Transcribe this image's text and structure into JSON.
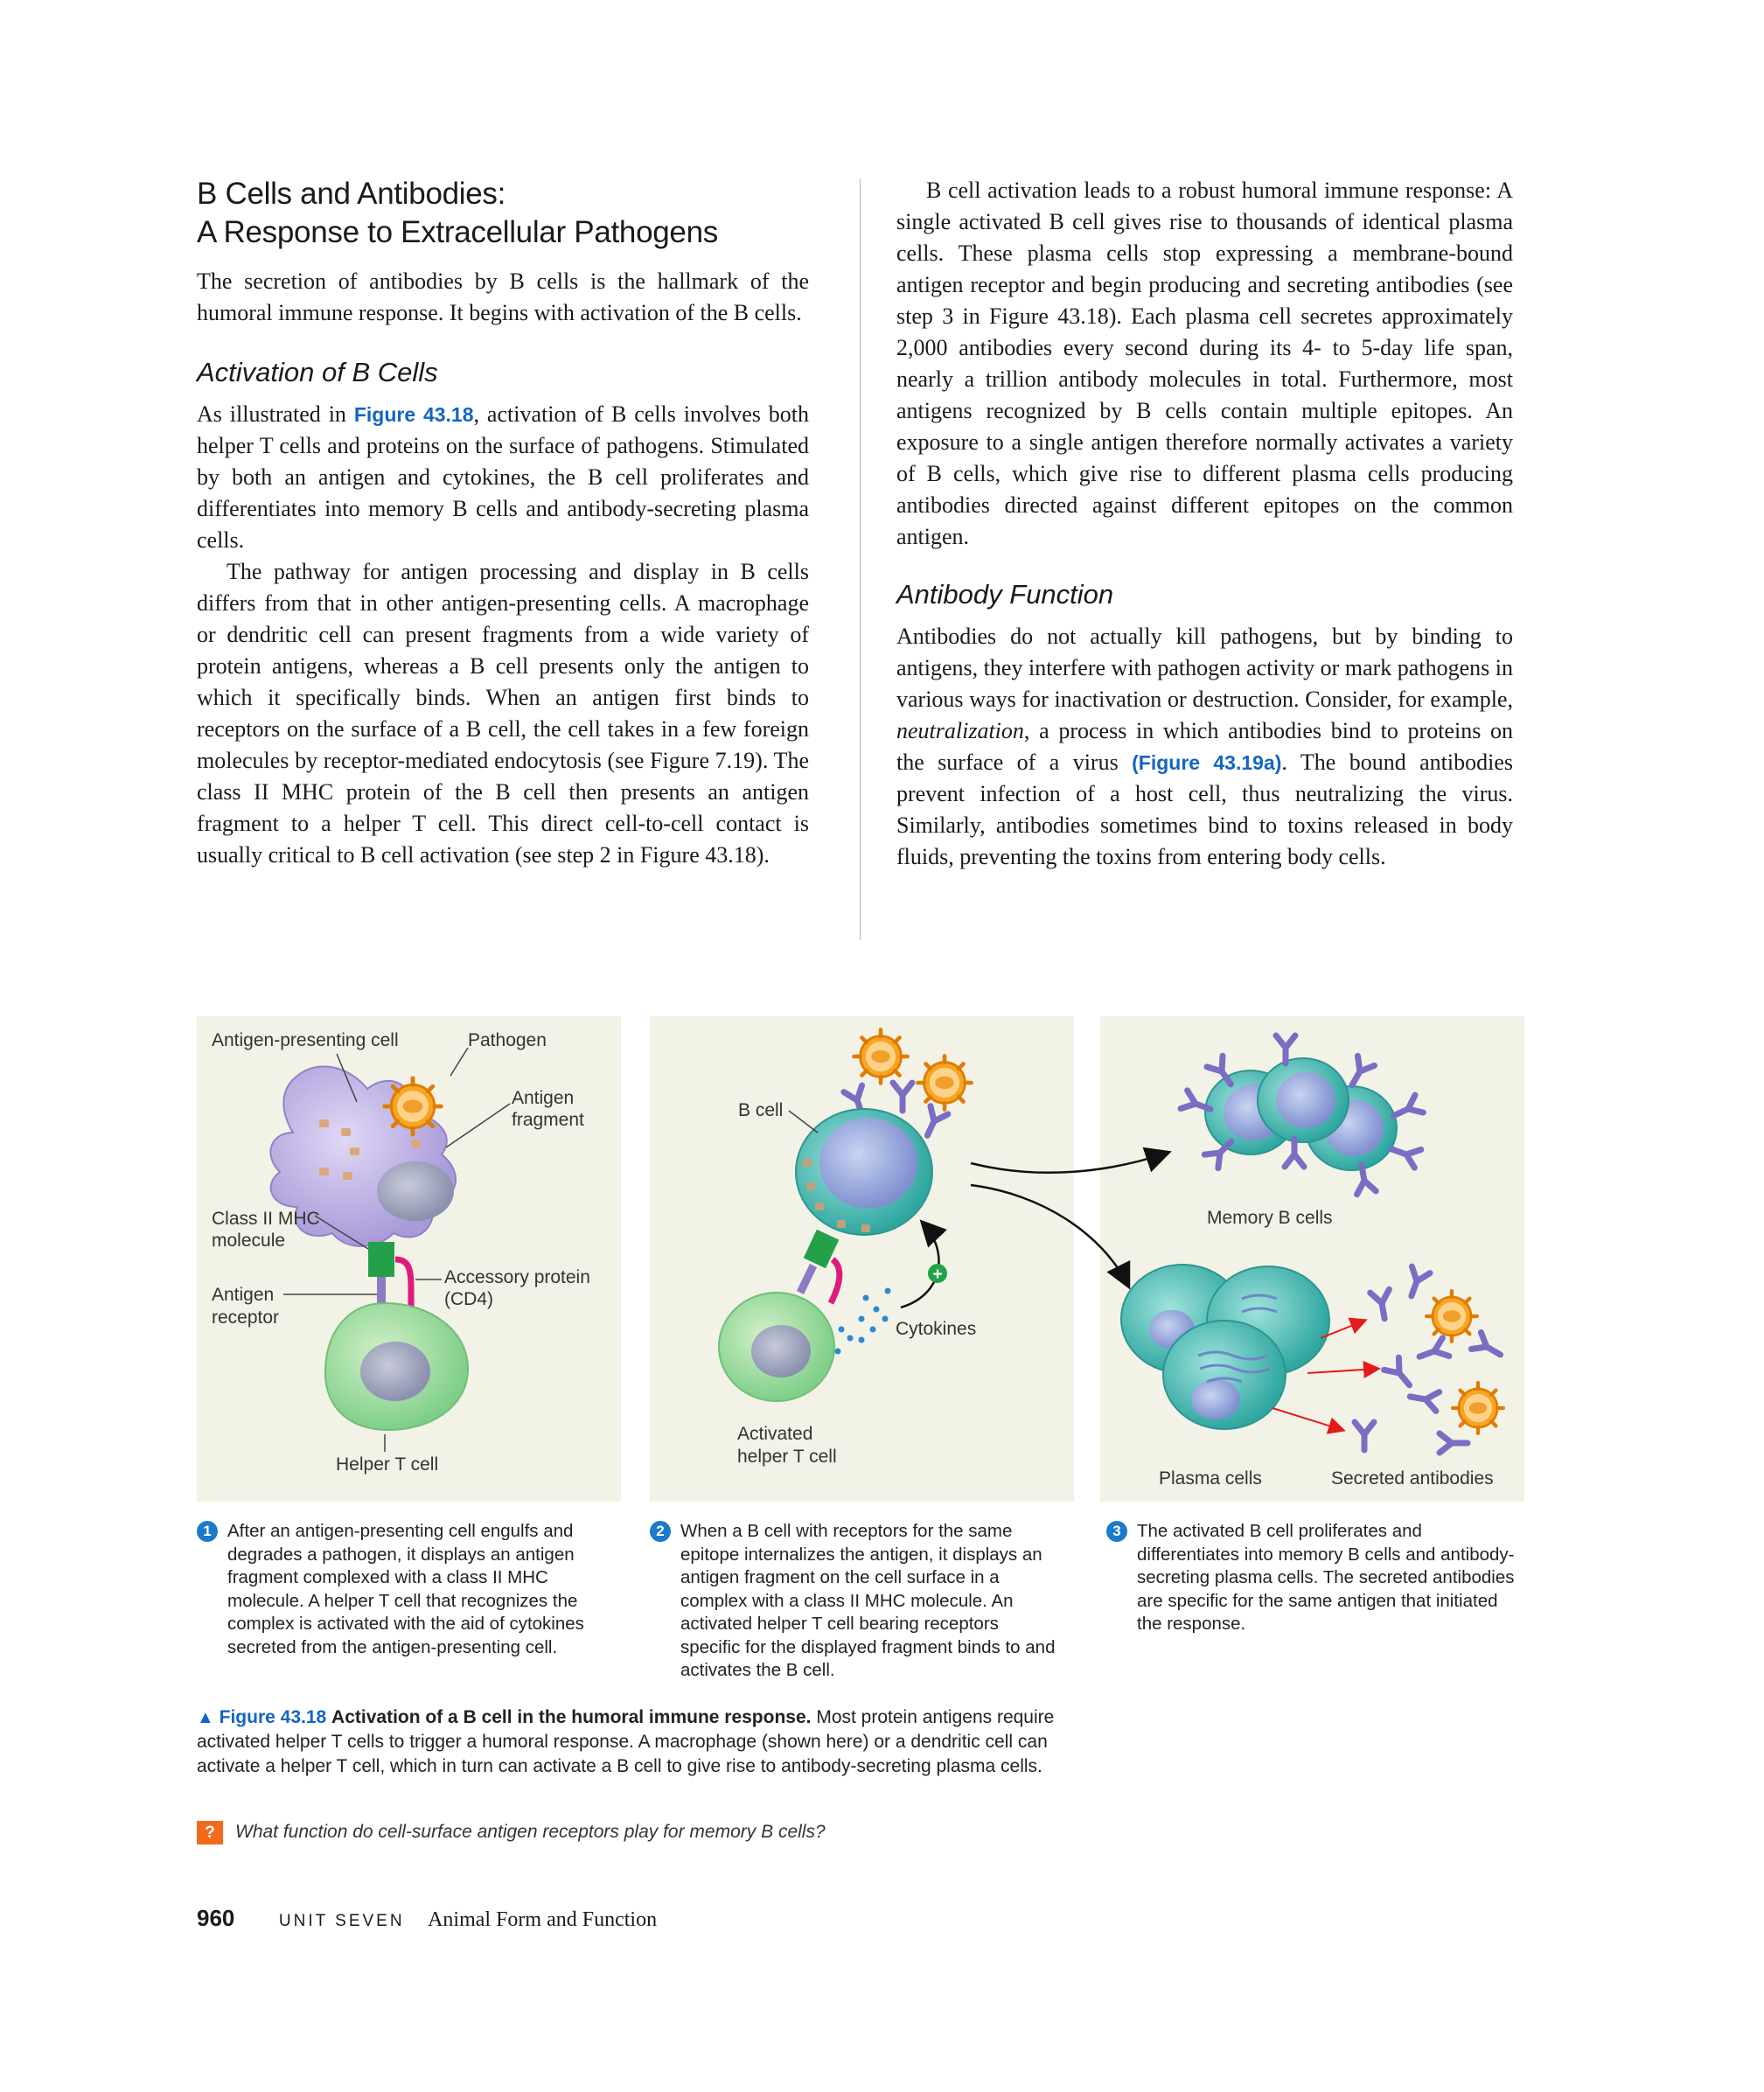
{
  "section": {
    "title_line1": "B Cells and Antibodies:",
    "title_line2": "A Response to Extracellular Pathogens",
    "intro": "The secretion of antibodies by B cells is the hallmark of the humoral immune response. It begins with activation of the B cells."
  },
  "activation": {
    "heading": "Activation of B Cells",
    "p1_before": "As illustrated in ",
    "p1_link": "Figure 43.18",
    "p1_after": ", activation of B cells involves both helper T cells and proteins on the surface of pathogens. Stimulated by both an antigen and cytokines, the B cell proliferates and differentiates into memory B cells and antibody-secreting plasma cells.",
    "p2": "The pathway for antigen processing and display in B cells differs from that in other antigen-presenting cells. A macrophage or dendritic cell can present fragments from a wide variety of protein antigens, whereas a B cell presents only the antigen to which it specifically binds. When an antigen first binds to receptors on the surface of a B cell, the cell takes in a few foreign molecules by receptor-mediated endocytosis (see Figure 7.19). The class II MHC protein of the B cell then presents an antigen fragment to a helper T cell. This direct cell-to-cell contact is usually critical to B cell activation (see step 2 in Figure 43.18)."
  },
  "right": {
    "p1": "B cell activation leads to a robust humoral immune response: A single activated B cell gives rise to thousands of identical plasma cells. These plasma cells stop expressing a membrane-bound antigen receptor and begin producing and secreting antibodies (see step 3 in Figure 43.18). Each plasma cell secretes approximately 2,000 antibodies every second during its 4- to 5-day life span, nearly a trillion antibody molecules in total. Furthermore, most antigens recognized by B cells contain multiple epitopes. An exposure to a single antigen therefore normally activates a variety of B cells, which give rise to different plasma cells producing antibodies directed against different epitopes on the common antigen.",
    "heading": "Antibody Function",
    "p2_a": "Antibodies do not actually kill pathogens, but by binding to antigens, they interfere with pathogen activity or mark pathogens in various ways for inactivation or destruction. Consider, for example, ",
    "p2_term": "neutralization",
    "p2_b": ", a process in which antibodies bind to proteins on the surface of a virus ",
    "p2_link": "(Figure 43.19a)",
    "p2_c": ". The bound antibodies prevent infection of a host cell, thus neutralizing the virus. Similarly, antibodies sometimes bind to toxins released in body fluids, preventing the toxins from entering body cells."
  },
  "figure": {
    "labels": {
      "apc": "Antigen-presenting cell",
      "pathogen": "Pathogen",
      "antigen_fragment_1": "Antigen",
      "antigen_fragment_2": "fragment",
      "mhc_1": "Class II MHC",
      "mhc_2": "molecule",
      "accessory_1": "Accessory protein",
      "accessory_2": "(CD4)",
      "receptor_1": "Antigen",
      "receptor_2": "receptor",
      "helper_t": "Helper T cell",
      "b_cell": "B cell",
      "cytokines": "Cytokines",
      "activated_1": "Activated",
      "activated_2": "helper T cell",
      "memory": "Memory B cells",
      "plasma": "Plasma cells",
      "secreted": "Secreted antibodies",
      "plus": "+"
    },
    "steps": [
      {
        "num": "1",
        "text": "After an antigen-presenting cell engulfs and degrades a pathogen, it displays an antigen fragment complexed with a class II MHC molecule. A helper T cell that recognizes the complex is activated with the aid of cytokines secreted from the antigen-presenting cell."
      },
      {
        "num": "2",
        "text": "When a B cell with receptors for the same epitope internalizes the antigen, it displays an antigen fragment on the cell surface in a complex with a class II MHC molecule. An activated helper T cell bearing receptors specific for the displayed fragment binds to and activates the B cell."
      },
      {
        "num": "3",
        "text": "The activated B cell proliferates and differentiates into memory B cells and antibody-secreting plasma cells. The secreted antibodies are specific for the same antigen that initiated the response."
      }
    ],
    "caption_marker": "▲",
    "caption_label": "Figure 43.18",
    "caption_title": "Activation of a B cell in the humoral immune response.",
    "caption_text": "Most protein antigens require activated helper T cells to trigger a humoral response. A macrophage (shown here) or a dendritic cell can activate a helper T cell, which in turn can activate a B cell to give rise to antibody-secreting plasma cells.",
    "question_icon": "?",
    "question": "What function do cell-surface antigen receptors play for memory B cells?"
  },
  "footer": {
    "page": "960",
    "unit": "UNIT SEVEN",
    "chapter": "Animal Form and Function"
  },
  "colors": {
    "link_blue": "#1565c0",
    "panel_bg": "#f3f2e6",
    "question_orange": "#f26b1d",
    "step_blue": "#1b7ac9"
  }
}
